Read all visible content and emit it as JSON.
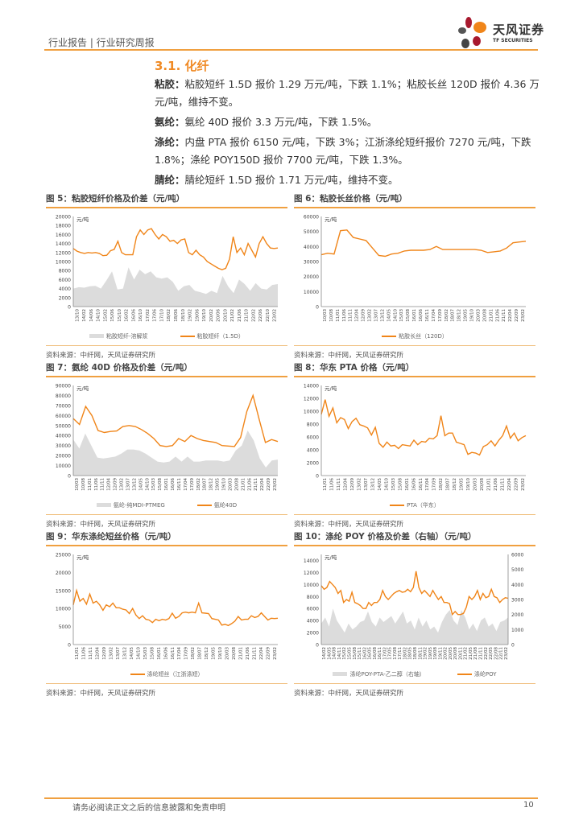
{
  "header": {
    "breadcrumb": "行业报告 | 行业研究周报",
    "logo_cn": "天风证券",
    "logo_en": "TF SECURITIES"
  },
  "section_title": "3.1. 化纤",
  "paragraphs": [
    {
      "label": "粘胶：",
      "text": "粘胶短纤 1.5D 报价 1.29 万元/吨，下跌 1.1%；粘胶长丝 120D 报价 4.36 万元/吨，维持不变。"
    },
    {
      "label": "氨纶：",
      "text": "氨纶 40D 报价 3.3 万元/吨，下跌 1.5%。"
    },
    {
      "label": "涤纶：",
      "text": "内盘 PTA 报价 6150 元/吨，下跌 3%；江浙涤纶短纤报价 7270 元/吨，下跌 1.8%；涤纶 POY150D 报价 7700 元/吨，下跌 1.3%。"
    },
    {
      "label": "腈纶：",
      "text": "腈纶短纤 1.5D 报价 1.71 万元/吨，维持不变。"
    }
  ],
  "colors": {
    "accent": "#f08a24",
    "line": "#f08519",
    "area": "#dcdcdc"
  },
  "chart_data": [
    {
      "title": "图 5：粘胶短纤价格及价差（元/吨）",
      "source": "资料来源：中纤网，天风证券研究所",
      "type": "line",
      "unit": "元/吨",
      "ylim": [
        0,
        20000
      ],
      "yticks": [
        0,
        2000,
        4000,
        6000,
        8000,
        10000,
        12000,
        14000,
        16000,
        18000,
        20000
      ],
      "xticks": [
        "13/10",
        "14/02",
        "14/06",
        "14/10",
        "15/02",
        "15/06",
        "15/10",
        "16/02",
        "16/06",
        "16/10",
        "17/02",
        "17/06",
        "17/10",
        "18/02",
        "18/06",
        "18/10",
        "19/02",
        "19/06",
        "19/10",
        "20/02",
        "20/06",
        "20/10",
        "21/02",
        "21/06",
        "21/10",
        "22/02",
        "22/06",
        "22/10",
        "23/02"
      ],
      "series": [
        {
          "name": "粘胶短纤-溶解浆",
          "kind": "area",
          "values": [
            4000,
            4300,
            4200,
            4500,
            4600,
            4000,
            5800,
            7800,
            3800,
            4000,
            8700,
            6000,
            8200,
            7200,
            7800,
            6500,
            6200,
            6500,
            5500,
            3500,
            4500,
            4800,
            3500,
            3200,
            2800,
            3500,
            3000,
            6800,
            4500,
            3000,
            6000,
            5000,
            3500,
            5200,
            4000,
            3800,
            4800,
            5000
          ]
        },
        {
          "name": "粘胶短纤（1.5D）",
          "kind": "line",
          "values": [
            12900,
            12300,
            12000,
            11800,
            12000,
            11900,
            12000,
            11800,
            11300,
            11400,
            12400,
            12700,
            14500,
            12000,
            11500,
            11500,
            11500,
            15500,
            17000,
            16000,
            17000,
            17300,
            16000,
            15000,
            16000,
            15500,
            14500,
            14700,
            14000,
            14800,
            15000,
            12000,
            11500,
            12500,
            11500,
            11000,
            10000,
            9500,
            9000,
            8500,
            8200,
            8500,
            10500,
            15500,
            12000,
            13000,
            11500,
            14000,
            12500,
            11000,
            14000,
            15500,
            14000,
            13000,
            12900,
            13000
          ]
        }
      ]
    },
    {
      "title": "图 6：粘胶长丝价格（元/吨）",
      "source": "资料来源：中纤网，天风证券研究所",
      "type": "line",
      "unit": "元/吨",
      "ylim": [
        0,
        60000
      ],
      "yticks": [
        0,
        10000,
        20000,
        30000,
        40000,
        50000,
        60000
      ],
      "xticks": [
        "10/03",
        "10/08",
        "11/01",
        "11/06",
        "11/11",
        "12/04",
        "12/09",
        "13/02",
        "13/07",
        "13/12",
        "14/05",
        "14/10",
        "15/03",
        "15/08",
        "16/01",
        "16/06",
        "16/11",
        "17/04",
        "17/09",
        "18/02",
        "18/07",
        "18/12",
        "19/05",
        "19/10",
        "20/03",
        "20/08",
        "21/01",
        "21/06",
        "21/11",
        "22/04",
        "22/09",
        "23/02"
      ],
      "series": [
        {
          "name": "粘胶长丝（120D）",
          "kind": "line",
          "values": [
            34500,
            35500,
            35000,
            50500,
            51000,
            46000,
            45000,
            44000,
            39000,
            34000,
            33500,
            35000,
            35500,
            37000,
            37500,
            37500,
            37500,
            38000,
            40000,
            38000,
            38000,
            38000,
            38000,
            38000,
            38000,
            37500,
            36000,
            36500,
            37000,
            39000,
            42500,
            43000,
            43500
          ]
        }
      ]
    },
    {
      "title": "图 7：氨纶 40D 价格及价差（元/吨）",
      "source": "资料来源：中纤网，天风证券研究所",
      "type": "line",
      "unit": "元/吨",
      "ylim": [
        0,
        90000
      ],
      "yticks": [
        0,
        10000,
        20000,
        30000,
        40000,
        50000,
        60000,
        70000,
        80000,
        90000
      ],
      "xticks": [
        "10/03",
        "10/08",
        "11/01",
        "11/06",
        "11/11",
        "12/04",
        "12/09",
        "13/02",
        "13/07",
        "13/12",
        "14/05",
        "14/10",
        "15/03",
        "15/08",
        "16/01",
        "16/06",
        "16/11",
        "17/04",
        "17/09",
        "18/02",
        "18/07",
        "18/12",
        "19/05",
        "19/10",
        "20/03",
        "20/08",
        "21/01",
        "21/06",
        "21/11",
        "22/04",
        "22/09",
        "23/02"
      ],
      "series": [
        {
          "name": "氨纶-纯MDI-PTMEG",
          "kind": "area",
          "values": [
            36000,
            27000,
            42000,
            30000,
            18000,
            17000,
            18000,
            19000,
            22000,
            26000,
            26000,
            25000,
            22000,
            18000,
            14000,
            13000,
            14000,
            19000,
            14000,
            19000,
            14000,
            14000,
            15000,
            15000,
            15000,
            14000,
            15000,
            25000,
            30000,
            45000,
            35000,
            17000,
            8000,
            15000,
            16000
          ]
        },
        {
          "name": "氨纶40D",
          "kind": "line",
          "values": [
            57000,
            51000,
            69000,
            60000,
            45000,
            43000,
            44000,
            44500,
            49000,
            50000,
            49000,
            46000,
            42000,
            37000,
            30000,
            29000,
            30000,
            37000,
            34000,
            40000,
            37000,
            35000,
            34000,
            33000,
            30000,
            29500,
            29000,
            38000,
            64000,
            80000,
            56000,
            33000,
            36000,
            34000
          ]
        }
      ]
    },
    {
      "title": "图 8：华东 PTA 价格（元/吨）",
      "source": "资料来源：中纤网，天风证券研究所",
      "type": "line",
      "unit": "元/吨",
      "ylim": [
        0,
        14000
      ],
      "yticks": [
        0,
        2000,
        4000,
        6000,
        8000,
        10000,
        12000,
        14000
      ],
      "xticks": [
        "11/01",
        "11/06",
        "11/11",
        "12/04",
        "12/09",
        "13/02",
        "13/07",
        "13/12",
        "14/05",
        "14/10",
        "15/03",
        "15/08",
        "16/01",
        "16/06",
        "16/11",
        "17/04",
        "17/09",
        "18/02",
        "18/07",
        "18/12",
        "19/05",
        "19/10",
        "20/03",
        "20/08",
        "21/01",
        "21/06",
        "21/11",
        "22/04",
        "22/09",
        "23/02"
      ],
      "series": [
        {
          "name": "PTA（华东）",
          "kind": "line",
          "values": [
            9500,
            11800,
            9200,
            10500,
            8200,
            9000,
            8700,
            7300,
            8400,
            8900,
            7900,
            7700,
            7400,
            6300,
            7500,
            5000,
            4400,
            5200,
            4600,
            4700,
            4200,
            4800,
            4700,
            4600,
            5500,
            4800,
            5300,
            5200,
            5800,
            5700,
            6200,
            9300,
            6200,
            6600,
            6600,
            5200,
            5000,
            4800,
            3300,
            3600,
            3500,
            3200,
            4500,
            4800,
            5400,
            4600,
            5500,
            6200,
            7700,
            5800,
            6600,
            5400,
            5900,
            6200
          ]
        }
      ]
    },
    {
      "title": "图 9：华东涤纶短丝价格（元/吨）",
      "source": "资料来源：中纤网，天风证券研究所",
      "type": "line",
      "unit": "元/吨",
      "ylim": [
        0,
        25000
      ],
      "yticks": [
        0,
        5000,
        10000,
        15000,
        20000,
        25000
      ],
      "xticks": [
        "11/01",
        "11/06",
        "11/11",
        "12/04",
        "12/09",
        "13/02",
        "13/07",
        "13/12",
        "14/05",
        "14/10",
        "15/03",
        "15/08",
        "16/01",
        "16/06",
        "16/11",
        "17/04",
        "17/09",
        "18/02",
        "18/07",
        "18/12",
        "19/05",
        "19/10",
        "20/03",
        "20/08",
        "21/01",
        "21/06",
        "21/11",
        "22/04",
        "22/09",
        "23/02"
      ],
      "series": [
        {
          "name": "涤纶短丝（江浙涤短）",
          "kind": "line",
          "values": [
            11000,
            15000,
            12000,
            12800,
            11200,
            14000,
            11500,
            12000,
            11000,
            9500,
            11000,
            10500,
            11500,
            10200,
            10200,
            9800,
            9600,
            8600,
            10000,
            8200,
            7200,
            8000,
            7000,
            6800,
            6100,
            7000,
            6600,
            7000,
            6800,
            7200,
            8700,
            7300,
            7800,
            8800,
            9000,
            8800,
            9000,
            8800,
            11500,
            8800,
            8700,
            8600,
            7200,
            7000,
            6800,
            5400,
            5600,
            5300,
            5800,
            6500,
            7800,
            6800,
            7000,
            7000,
            8000,
            7500,
            7800,
            8800,
            7800,
            6800,
            7300,
            7200,
            7300
          ]
        }
      ]
    },
    {
      "title": "图 10：涤纶 POY 价格及价差（右轴）（元/吨）",
      "source": "资料来源：中纤网，天风证券研究所",
      "type": "line",
      "unit": "元/吨",
      "ylim": [
        0,
        15000
      ],
      "yticks": [
        0,
        2000,
        4000,
        6000,
        8000,
        10000,
        12000,
        14000
      ],
      "y2lim": [
        0,
        6000
      ],
      "y2ticks": [
        0,
        1000,
        2000,
        3000,
        4000,
        5000,
        6000
      ],
      "xticks": [
        "14/02",
        "14/05",
        "14/08",
        "14/11",
        "15/02",
        "15/05",
        "15/08",
        "15/11",
        "16/02",
        "16/05",
        "16/08",
        "16/11",
        "17/02",
        "17/05",
        "17/08",
        "17/11",
        "18/02",
        "18/05",
        "18/08",
        "18/11",
        "19/02",
        "19/05",
        "19/08",
        "19/11",
        "20/02",
        "20/05",
        "20/08",
        "20/11",
        "21/02",
        "21/05",
        "21/08",
        "21/11",
        "22/02",
        "22/05",
        "22/08",
        "22/11",
        "23/02"
      ],
      "series": [
        {
          "name": "涤纶POY-PTA-乙二醇（右轴）",
          "kind": "area",
          "axis": "right",
          "values": [
            1400,
            1800,
            1200,
            2400,
            1600,
            1200,
            800,
            1400,
            1000,
            1200,
            1500,
            1600,
            2200,
            1500,
            1200,
            1800,
            1500,
            1700,
            1900,
            1400,
            1800,
            2200,
            1400,
            1600,
            1000,
            1800,
            1200,
            1600,
            1000,
            1200,
            800,
            1500,
            2000,
            2300,
            1600,
            1300,
            2300,
            1800,
            1000,
            1400,
            900,
            1600,
            1800,
            1200,
            1400,
            900,
            1500,
            1600,
            1800
          ]
        },
        {
          "name": "涤纶POY",
          "kind": "line",
          "values": [
            9800,
            9200,
            9500,
            10500,
            10000,
            9500,
            8500,
            9000,
            7000,
            7500,
            7200,
            8700,
            7000,
            6800,
            6500,
            6000,
            6000,
            7000,
            6500,
            7000,
            7000,
            7500,
            9000,
            8000,
            7500,
            8000,
            8500,
            8800,
            9000,
            8700,
            8800,
            9200,
            8800,
            9500,
            12200,
            9500,
            8500,
            9000,
            8500,
            8000,
            9000,
            8200,
            7500,
            8000,
            7000,
            7000,
            6800,
            5000,
            5500,
            5000,
            5000,
            5200,
            6200,
            8000,
            7500,
            8000,
            9000,
            7500,
            8500,
            7800,
            8000,
            9200,
            8000,
            7800,
            7000,
            7500,
            7800,
            7700
          ]
        }
      ]
    }
  ],
  "footer": {
    "disclaimer": "请务必阅读正文之后的信息披露和免责申明",
    "page": "10"
  }
}
